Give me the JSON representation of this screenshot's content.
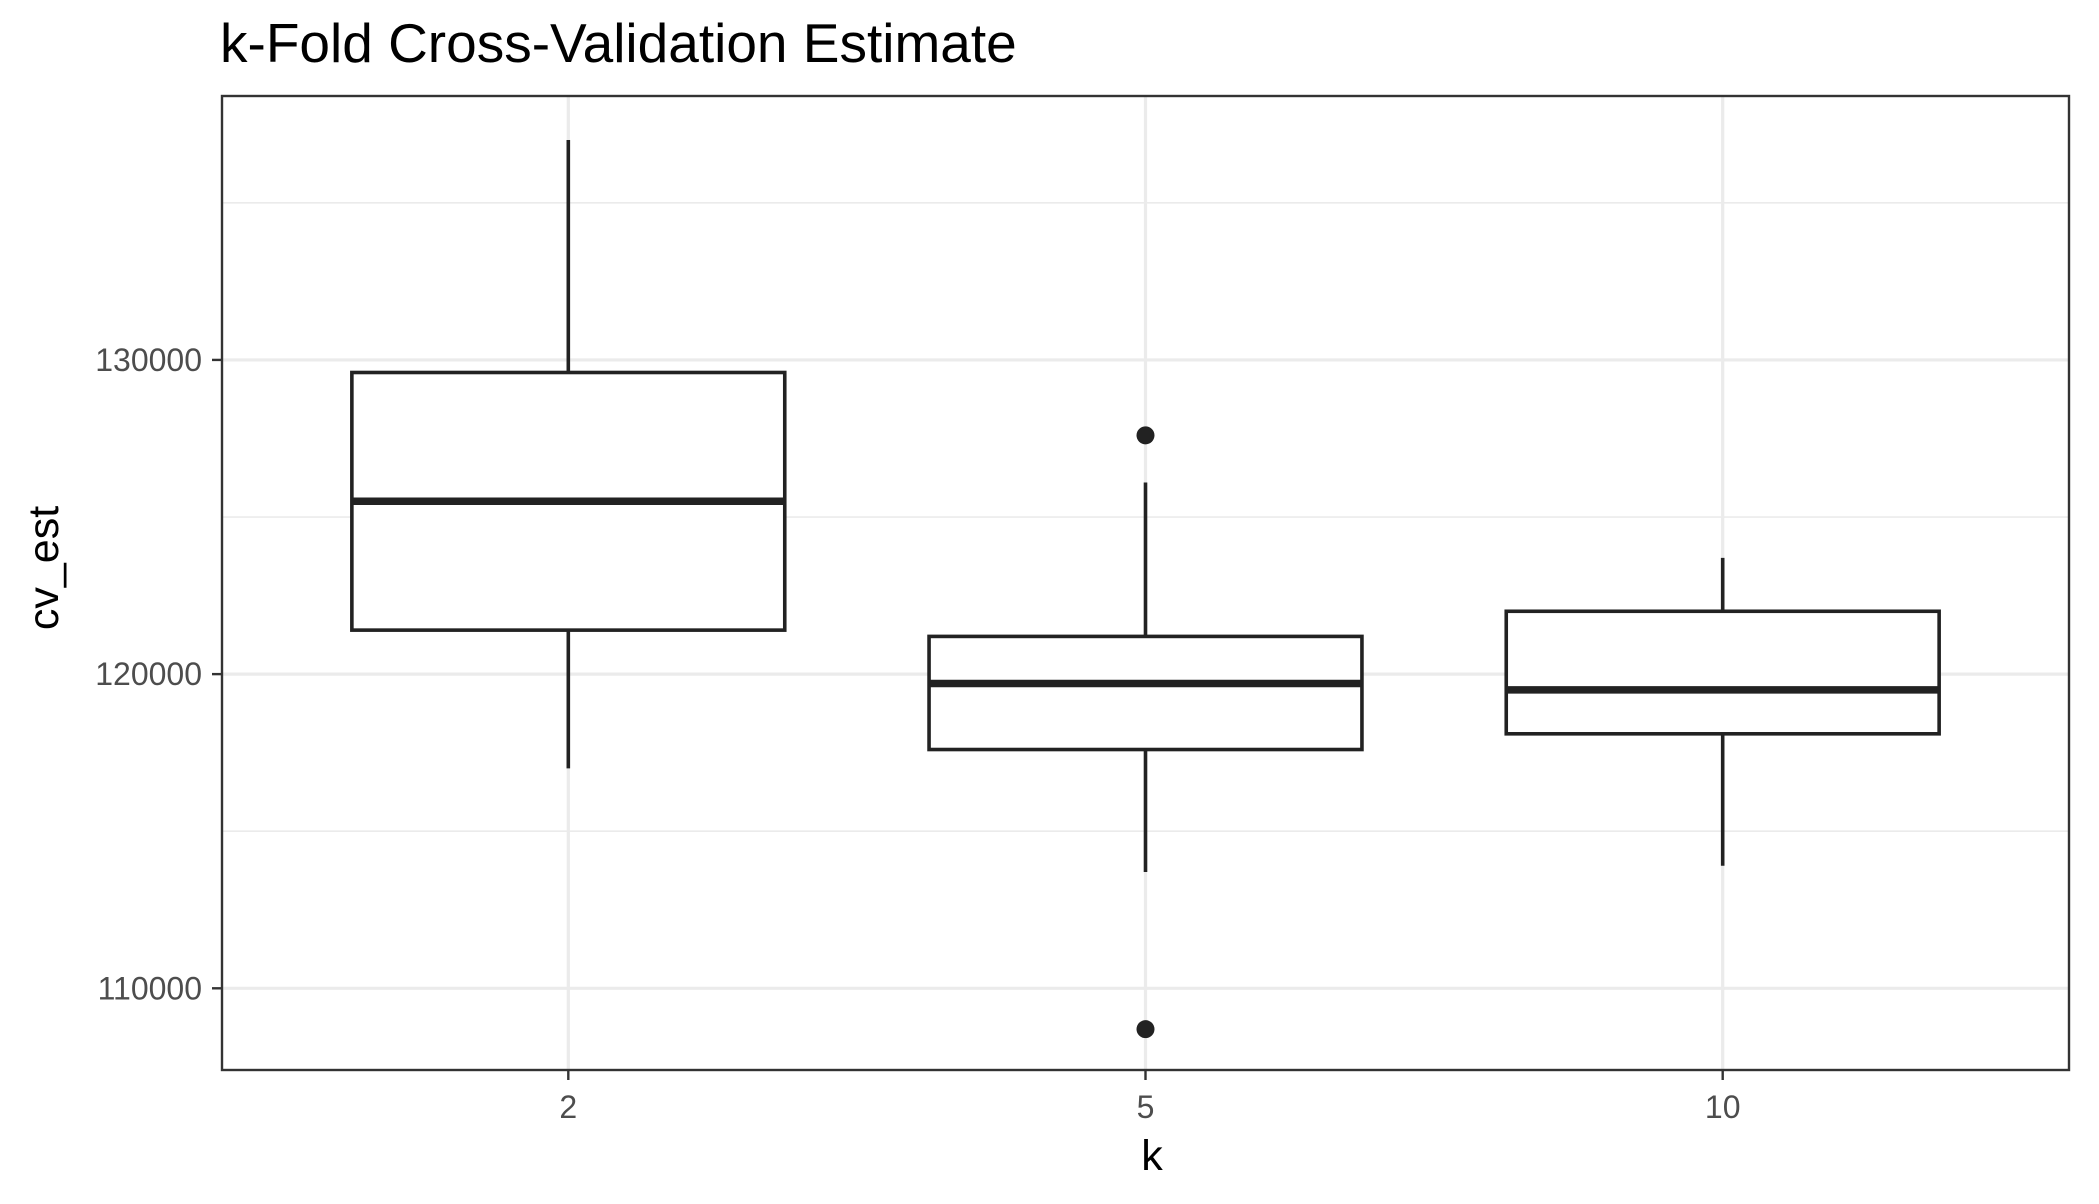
{
  "chart_data": {
    "type": "boxplot",
    "title": "k-Fold Cross-Validation Estimate",
    "xlabel": "k",
    "ylabel": "cv_est",
    "categories": [
      "2",
      "5",
      "10"
    ],
    "ylim": [
      107400,
      138400
    ],
    "yticks": [
      110000,
      120000,
      130000
    ],
    "yticks_labels": [
      "110000",
      "120000",
      "130000"
    ],
    "y_minor_ticks": [
      115000,
      125000,
      135000
    ],
    "grid": true,
    "theme": "bw",
    "colors": {
      "box_line": "#222222",
      "box_fill": "#ffffff",
      "grid": "#ebebeb",
      "panel_border": "#333333",
      "tick_label": "#4d4d4d"
    },
    "boxes": [
      {
        "category": "2",
        "whisker_low": 117000,
        "q1": 121400,
        "median": 125500,
        "q3": 129600,
        "whisker_high": 137000,
        "outliers": []
      },
      {
        "category": "5",
        "whisker_low": 113700,
        "q1": 117600,
        "median": 119700,
        "q3": 121200,
        "whisker_high": 126100,
        "outliers": [
          127600,
          108700
        ]
      },
      {
        "category": "10",
        "whisker_low": 113900,
        "q1": 118100,
        "median": 119500,
        "q3": 122000,
        "whisker_high": 123700,
        "outliers": []
      }
    ]
  }
}
